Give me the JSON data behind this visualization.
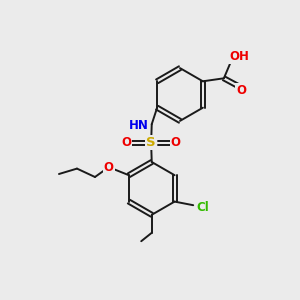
{
  "background_color": "#ebebeb",
  "bond_color": "#1a1a1a",
  "atom_colors": {
    "O": "#ee0000",
    "N": "#0000ee",
    "S": "#ccaa00",
    "Cl": "#33bb00",
    "H": "#888888",
    "C": "#1a1a1a"
  },
  "figsize": [
    3.0,
    3.0
  ],
  "dpi": 100
}
